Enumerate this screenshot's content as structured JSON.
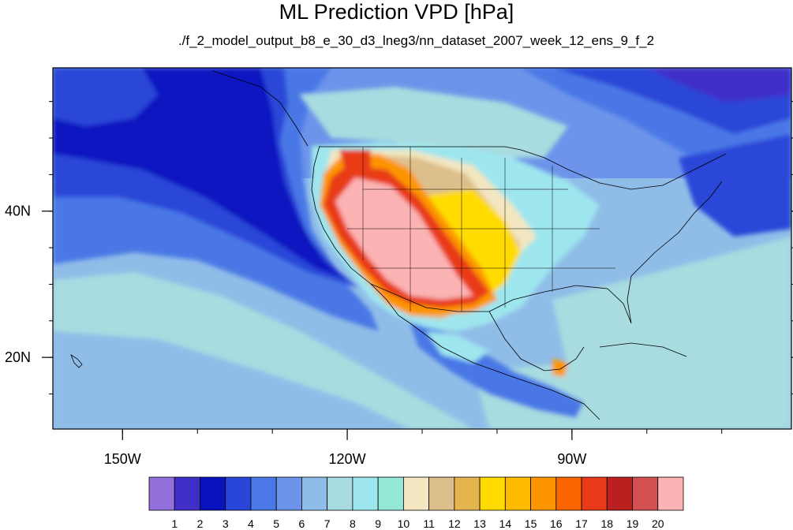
{
  "title": "ML Prediction VPD [hPa]",
  "subtitle": "./f_2_model_output_b8_e_30_d3_lneg3/nn_dataset_2007_week_12_ens_9_f_2",
  "map": {
    "lat_ticks": [
      {
        "value": 40,
        "label": "40N"
      },
      {
        "value": 20,
        "label": "20N"
      }
    ],
    "lon_ticks": [
      {
        "value": -150,
        "label": "150W"
      },
      {
        "value": -120,
        "label": "120W"
      },
      {
        "value": -90,
        "label": "90W"
      }
    ],
    "lon_range": [
      -159.3,
      -60.7
    ],
    "lat_range": [
      10.2,
      59.6
    ]
  },
  "colorbar": {
    "colors": [
      "#9370db",
      "#3f2fc8",
      "#0a12c0",
      "#2a46d8",
      "#4a78e6",
      "#6d94ea",
      "#90bde8",
      "#a8dce0",
      "#9ee6ee",
      "#95e7d6",
      "#f3e6c0",
      "#ddbf8c",
      "#e4b44e",
      "#ffdb00",
      "#ffbb00",
      "#fd9500",
      "#fc6600",
      "#e83a18",
      "#bb2020",
      "#d35050",
      "#fcb3b3"
    ],
    "labels": [
      "1",
      "2",
      "3",
      "4",
      "5",
      "6",
      "7",
      "8",
      "9",
      "10",
      "11",
      "12",
      "13",
      "14",
      "15",
      "16",
      "17",
      "18",
      "19",
      "20"
    ]
  }
}
